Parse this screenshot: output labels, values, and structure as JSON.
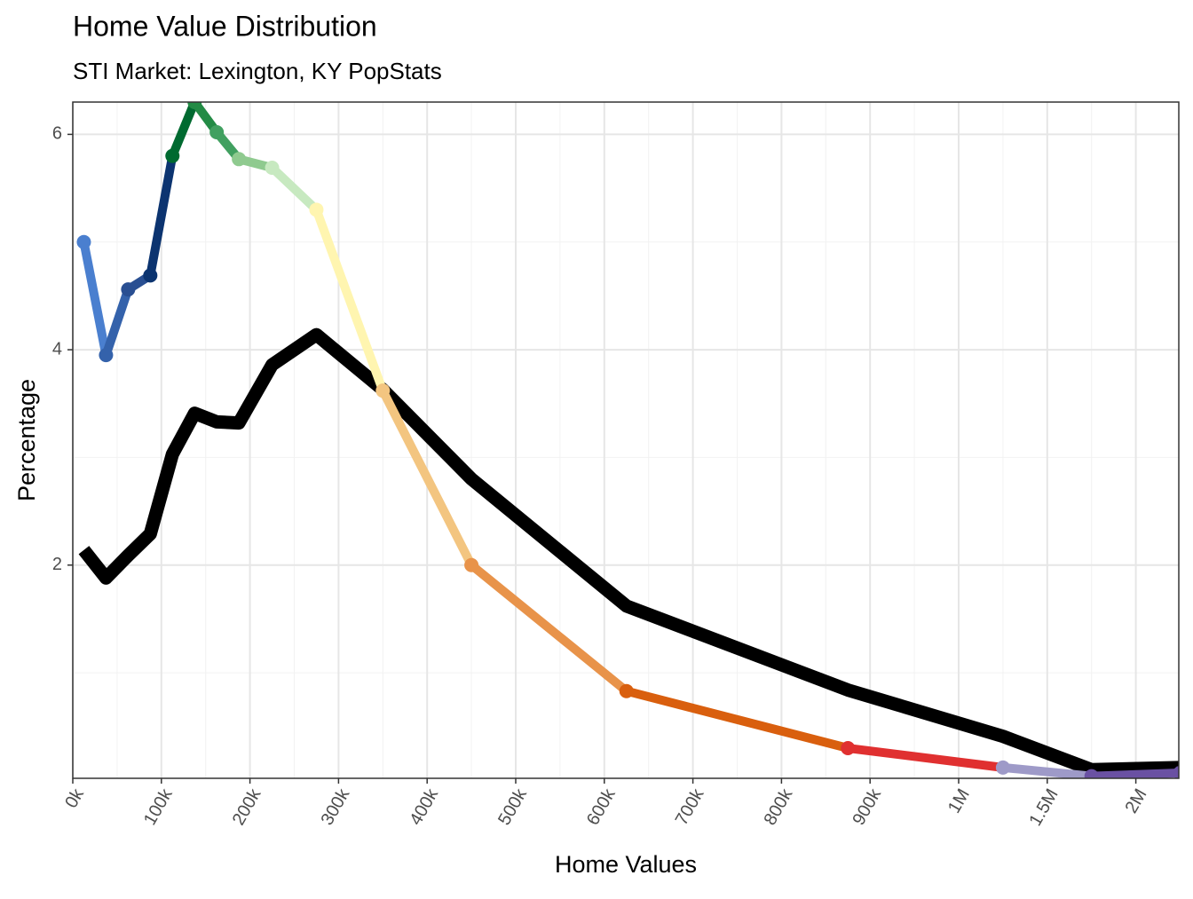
{
  "chart_data": {
    "type": "line",
    "title": "Home Value Distribution",
    "subtitle": "STI Market: Lexington, KY PopStats",
    "x_label": "Home Values",
    "y_label": "Percentage",
    "x": [
      12500,
      37500,
      62500,
      87500,
      112500,
      137500,
      162500,
      187500,
      225000,
      275000,
      350000,
      450000,
      625000,
      875000,
      1250000,
      1750000,
      2250000
    ],
    "series": [
      {
        "values": [
          5.0,
          3.95,
          4.56,
          4.69,
          5.8,
          6.3,
          6.02,
          5.77,
          5.69,
          5.3,
          3.62,
          2.0,
          0.83,
          0.3,
          0.12,
          0.04,
          0.07
        ],
        "colors": [
          "#4a7fcf",
          "#3462ab",
          "#294f92",
          "#0c3470",
          "#006a30",
          "#238b45",
          "#41a060",
          "#8fca8f",
          "#c7e9c0",
          "#fff5b0",
          "#f3c580",
          "#e8934a",
          "#d95f0e",
          "#e03030",
          "#9e9ac8",
          "#6a51a3",
          "#6a51a3"
        ],
        "width": 10,
        "markers": true
      },
      {
        "values": [
          2.14,
          1.88,
          2.09,
          2.29,
          3.03,
          3.41,
          3.33,
          3.32,
          3.86,
          4.14,
          3.63,
          2.8,
          1.62,
          0.84,
          0.41,
          0.1,
          0.12
        ],
        "color": "#000000",
        "width": 15,
        "markers": false
      }
    ],
    "xlim": [
      0,
      2240000
    ],
    "ylim": [
      0.02,
      6.3
    ],
    "xticks": [
      {
        "value": 0,
        "label": "0k"
      },
      {
        "value": 100000,
        "label": "100k"
      },
      {
        "value": 200000,
        "label": "200k"
      },
      {
        "value": 300000,
        "label": "300k"
      },
      {
        "value": 400000,
        "label": "400k"
      },
      {
        "value": 500000,
        "label": "500k"
      },
      {
        "value": 600000,
        "label": "600k"
      },
      {
        "value": 700000,
        "label": "700k"
      },
      {
        "value": 800000,
        "label": "800k"
      },
      {
        "value": 900000,
        "label": "900k"
      },
      {
        "value": 1000000,
        "label": "1M"
      },
      {
        "value": 1500000,
        "label": "1.5M"
      },
      {
        "value": 2000000,
        "label": "2M"
      }
    ],
    "yticks": [
      2,
      4,
      6
    ],
    "grid": true,
    "minor_grid": true
  }
}
